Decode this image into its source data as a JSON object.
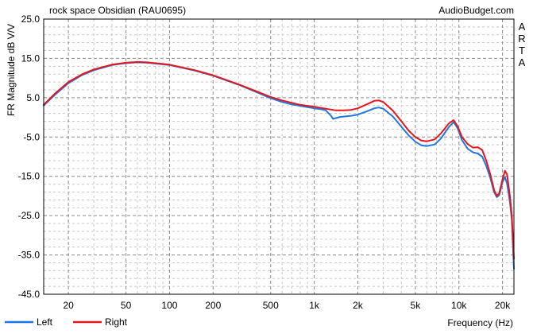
{
  "chart_data": {
    "type": "line",
    "title": "rock space Obsidian (RAU0695)",
    "source": "AudioBudget.com",
    "watermark": "ARTA",
    "xlabel": "Frequency (Hz)",
    "ylabel": "FR Magnitude dB V/V",
    "x_scale": "log",
    "xlim": [
      13.5,
      24000
    ],
    "ylim": [
      -45,
      25
    ],
    "grid": true,
    "legend_position": "bottom-left",
    "y_ticks": [
      25,
      15,
      5,
      -5,
      -15,
      -25,
      -35,
      -45
    ],
    "y_tick_labels": [
      "25.0",
      "15.0",
      "5.0",
      "-5.0",
      "-15.0",
      "-25.0",
      "-35.0",
      "-45.0"
    ],
    "x_ticks": [
      20,
      50,
      100,
      200,
      500,
      1000,
      2000,
      5000,
      10000,
      20000
    ],
    "x_tick_labels": [
      "20",
      "50",
      "100",
      "200",
      "500",
      "1k",
      "2k",
      "5k",
      "10k",
      "20k"
    ],
    "series": [
      {
        "name": "Left",
        "color": "#1f78e0",
        "points": [
          [
            13.5,
            3.0
          ],
          [
            16,
            5.6
          ],
          [
            20,
            8.7
          ],
          [
            25,
            10.8
          ],
          [
            30,
            12.0
          ],
          [
            40,
            13.3
          ],
          [
            50,
            13.8
          ],
          [
            60,
            14.0
          ],
          [
            70,
            13.9
          ],
          [
            100,
            13.3
          ],
          [
            150,
            11.9
          ],
          [
            200,
            10.6
          ],
          [
            300,
            8.3
          ],
          [
            400,
            6.4
          ],
          [
            500,
            4.9
          ],
          [
            600,
            3.9
          ],
          [
            700,
            3.3
          ],
          [
            800,
            2.9
          ],
          [
            1000,
            2.3
          ],
          [
            1100,
            2.1
          ],
          [
            1200,
            1.8
          ],
          [
            1300,
            0.5
          ],
          [
            1350,
            -0.4
          ],
          [
            1400,
            -0.2
          ],
          [
            1500,
            0.1
          ],
          [
            1800,
            0.4
          ],
          [
            2000,
            0.7
          ],
          [
            2300,
            1.5
          ],
          [
            2600,
            2.3
          ],
          [
            2800,
            2.5
          ],
          [
            3000,
            2.2
          ],
          [
            3500,
            0.2
          ],
          [
            4000,
            -2.4
          ],
          [
            4500,
            -4.6
          ],
          [
            5000,
            -6.2
          ],
          [
            5500,
            -7.1
          ],
          [
            6000,
            -7.3
          ],
          [
            6800,
            -6.9
          ],
          [
            7500,
            -5.4
          ],
          [
            8500,
            -2.5
          ],
          [
            9200,
            -1.2
          ],
          [
            9800,
            -2.8
          ],
          [
            10500,
            -5.8
          ],
          [
            11500,
            -8.0
          ],
          [
            12500,
            -8.9
          ],
          [
            13500,
            -9.2
          ],
          [
            14500,
            -10.0
          ],
          [
            15500,
            -12.5
          ],
          [
            16500,
            -15.5
          ],
          [
            17500,
            -19.0
          ],
          [
            18300,
            -20.3
          ],
          [
            19000,
            -19.8
          ],
          [
            20000,
            -16.5
          ],
          [
            20800,
            -15.2
          ],
          [
            21500,
            -16.8
          ],
          [
            22500,
            -21.5
          ],
          [
            23200,
            -26.0
          ],
          [
            24000,
            -38.5
          ]
        ]
      },
      {
        "name": "Right",
        "color": "#e8141c",
        "points": [
          [
            13.5,
            3.2
          ],
          [
            16,
            5.9
          ],
          [
            20,
            9.0
          ],
          [
            25,
            11.0
          ],
          [
            30,
            12.2
          ],
          [
            40,
            13.4
          ],
          [
            50,
            13.9
          ],
          [
            60,
            14.1
          ],
          [
            70,
            14.0
          ],
          [
            100,
            13.4
          ],
          [
            150,
            12.0
          ],
          [
            200,
            10.7
          ],
          [
            300,
            8.4
          ],
          [
            400,
            6.6
          ],
          [
            500,
            5.2
          ],
          [
            600,
            4.3
          ],
          [
            700,
            3.7
          ],
          [
            800,
            3.2
          ],
          [
            1000,
            2.7
          ],
          [
            1200,
            2.2
          ],
          [
            1400,
            1.8
          ],
          [
            1600,
            1.8
          ],
          [
            1800,
            1.9
          ],
          [
            2000,
            2.3
          ],
          [
            2300,
            3.3
          ],
          [
            2600,
            4.2
          ],
          [
            2800,
            4.3
          ],
          [
            3000,
            3.9
          ],
          [
            3500,
            1.7
          ],
          [
            4000,
            -1.0
          ],
          [
            4500,
            -3.4
          ],
          [
            5000,
            -5.0
          ],
          [
            5500,
            -5.9
          ],
          [
            6000,
            -6.1
          ],
          [
            6800,
            -5.6
          ],
          [
            7500,
            -4.1
          ],
          [
            8500,
            -1.6
          ],
          [
            9200,
            -0.7
          ],
          [
            9800,
            -2.3
          ],
          [
            10500,
            -5.0
          ],
          [
            11500,
            -6.8
          ],
          [
            12500,
            -7.7
          ],
          [
            13500,
            -7.6
          ],
          [
            14500,
            -8.3
          ],
          [
            15500,
            -11.2
          ],
          [
            16500,
            -14.6
          ],
          [
            17500,
            -18.5
          ],
          [
            18300,
            -20.0
          ],
          [
            19000,
            -19.3
          ],
          [
            20000,
            -15.8
          ],
          [
            20800,
            -13.6
          ],
          [
            21500,
            -14.5
          ],
          [
            22500,
            -20.0
          ],
          [
            23200,
            -25.0
          ],
          [
            24000,
            -36.0
          ]
        ]
      }
    ]
  }
}
